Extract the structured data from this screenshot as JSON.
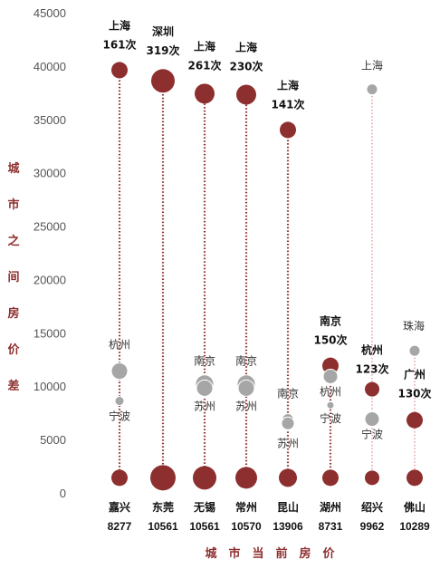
{
  "chart_data": {
    "type": "scatter",
    "ylabel": "城市之间房价差",
    "xlabel": "城市当前房价",
    "ylim": [
      0,
      45000
    ],
    "yticks": [
      "0",
      "5000",
      "10000",
      "15000",
      "20000",
      "25000",
      "30000",
      "35000",
      "40000",
      "45000"
    ],
    "colors": {
      "red": "#8e2f2f",
      "grey": "#a6a6a6",
      "line_red": "#8e2f2f",
      "line_grey": "#e8b8b8"
    },
    "cities": [
      {
        "name": "嘉兴",
        "price": "8277",
        "points": [
          {
            "city": "上海",
            "y": 39700,
            "count": "161次",
            "r": 9,
            "color": "red"
          },
          {
            "city": "杭州",
            "y": 11500,
            "r": 9,
            "color": "grey"
          },
          {
            "city": "宁波",
            "y": 8700,
            "r": 5,
            "color": "grey"
          },
          {
            "y": 1500,
            "r": 9,
            "color": "red"
          }
        ]
      },
      {
        "name": "东莞",
        "price": "10561",
        "points": [
          {
            "city": "深圳",
            "y": 38700,
            "count": "319次",
            "r": 13,
            "color": "red"
          },
          {
            "y": 1500,
            "r": 14,
            "color": "red"
          }
        ]
      },
      {
        "name": "无锡",
        "price": "10561",
        "points": [
          {
            "city": "上海",
            "y": 37500,
            "count": "261次",
            "r": 11,
            "color": "red"
          },
          {
            "city": "南京",
            "y": 10300,
            "r": 10,
            "color": "grey"
          },
          {
            "city": "苏州",
            "y": 9900,
            "r": 9,
            "color": "grey"
          },
          {
            "y": 1500,
            "r": 13,
            "color": "red"
          }
        ]
      },
      {
        "name": "常州",
        "price": "10570",
        "points": [
          {
            "city": "上海",
            "y": 37400,
            "count": "230次",
            "r": 11,
            "color": "red"
          },
          {
            "city": "南京",
            "y": 10300,
            "r": 10,
            "color": "grey"
          },
          {
            "city": "苏州",
            "y": 9900,
            "r": 9,
            "color": "grey"
          },
          {
            "y": 1500,
            "r": 12,
            "color": "red"
          }
        ]
      },
      {
        "name": "昆山",
        "price": "13906",
        "points": [
          {
            "city": "上海",
            "y": 34100,
            "count": "141次",
            "r": 9,
            "color": "red"
          },
          {
            "city": "南京",
            "y": 7000,
            "r": 6,
            "color": "grey"
          },
          {
            "city": "苏州",
            "y": 6600,
            "r": 7,
            "color": "grey"
          },
          {
            "y": 1500,
            "r": 10,
            "color": "red"
          }
        ]
      },
      {
        "name": "湖州",
        "price": "8731",
        "points": [
          {
            "city": "南京",
            "y": 12000,
            "count": "150次",
            "r": 9,
            "color": "red"
          },
          {
            "city": "杭州",
            "y": 11000,
            "r": 8,
            "color": "grey"
          },
          {
            "city": "宁波",
            "y": 8300,
            "r": 4,
            "color": "grey"
          },
          {
            "y": 1500,
            "r": 9,
            "color": "red"
          }
        ]
      },
      {
        "name": "绍兴",
        "price": "9962",
        "points": [
          {
            "city": "上海",
            "y": 37900,
            "r": 6,
            "color": "grey"
          },
          {
            "city": "杭州",
            "y": 9800,
            "count": "123次",
            "r": 8,
            "color": "red"
          },
          {
            "city": "宁波",
            "y": 7000,
            "r": 8,
            "color": "grey"
          },
          {
            "y": 1500,
            "r": 8,
            "color": "red"
          }
        ]
      },
      {
        "name": "佛山",
        "price": "10289",
        "points": [
          {
            "city": "珠海",
            "y": 13400,
            "r": 6,
            "color": "grey"
          },
          {
            "city": "广州",
            "y": 6900,
            "count": "130次",
            "r": 9,
            "color": "red"
          },
          {
            "y": 1500,
            "r": 9,
            "color": "red"
          }
        ]
      }
    ]
  }
}
